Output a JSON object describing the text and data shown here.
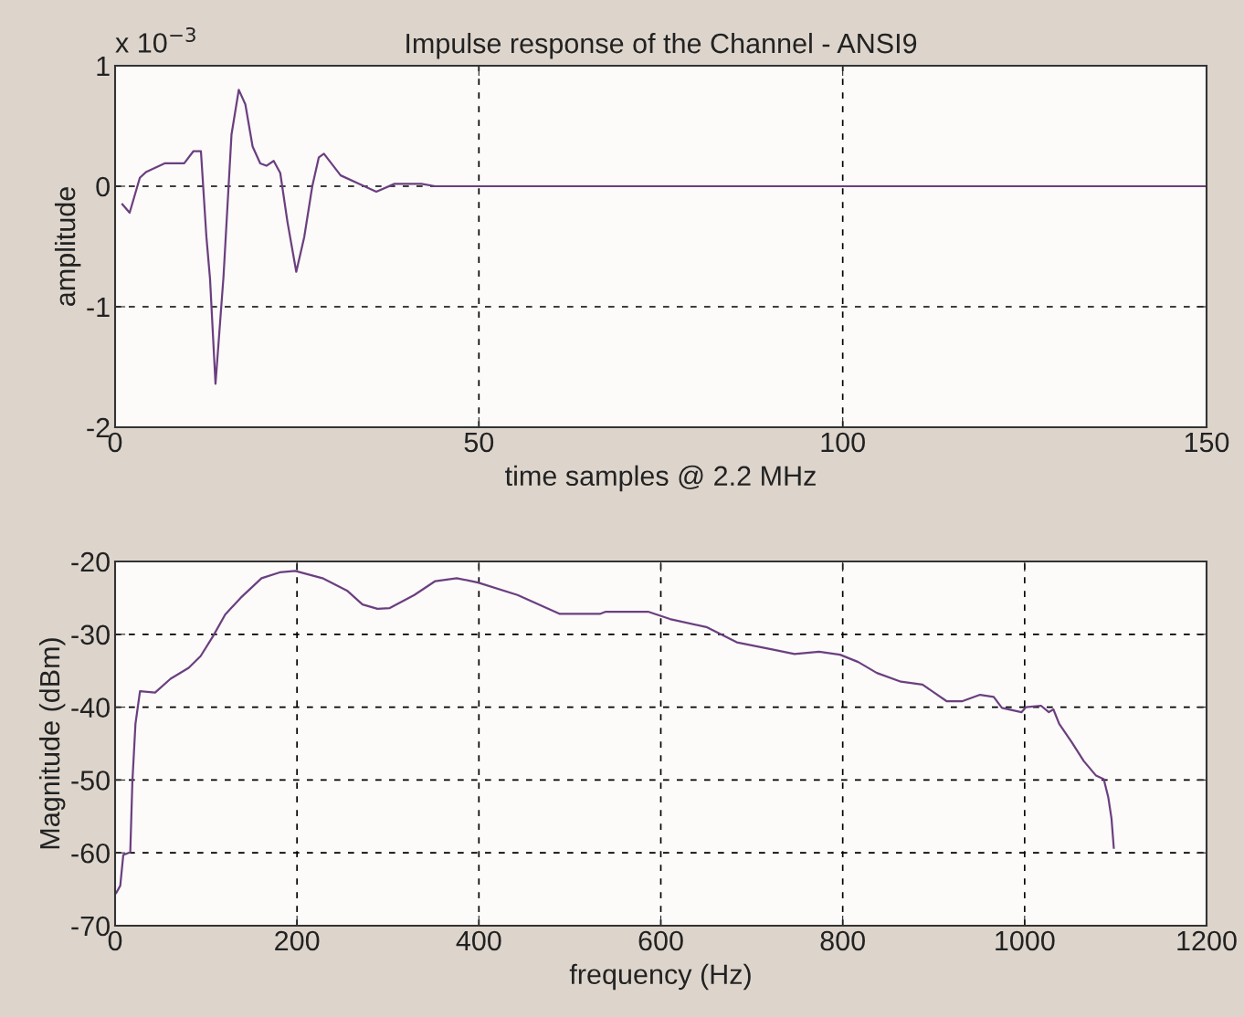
{
  "chart_data": [
    {
      "type": "line",
      "title": "Impulse response of the Channel - ANSI9",
      "xlabel": "time samples @ 2.2 MHz",
      "ylabel": "amplitude",
      "annotations": [
        "x 10$^{−3}$"
      ],
      "x": [
        1,
        2,
        3.4,
        4.3,
        6.8,
        9.5,
        10.75,
        11.8,
        12.55,
        13.05,
        13.8,
        14.9,
        16,
        17,
        17.9,
        18.9,
        19.95,
        20.8,
        21.8,
        22.7,
        23.7,
        24.9,
        26,
        27.1,
        28,
        28.7,
        31,
        33.5,
        35.9,
        38.4,
        42.1,
        44,
        150
      ],
      "series": [
        {
          "color": "#6b3f7f",
          "values": [
            -0.15,
            -0.22,
            0.07,
            0.12,
            0.19,
            0.19,
            0.29,
            0.29,
            -0.42,
            -0.77,
            -1.64,
            -0.75,
            0.43,
            0.8,
            0.68,
            0.33,
            0.19,
            0.17,
            0.21,
            0.11,
            -0.3,
            -0.71,
            -0.42,
            0.0,
            0.24,
            0.27,
            0.09,
            0.02,
            -0.045,
            0.02,
            0.02,
            0,
            0
          ]
        }
      ],
      "xlim": [
        0,
        150
      ],
      "ylim": [
        -2,
        1
      ],
      "xticks": [
        0,
        50,
        100,
        150
      ],
      "yticks": [
        -2,
        -1,
        0,
        1
      ],
      "grid": true,
      "line_style": "solid",
      "marker": "none"
    },
    {
      "type": "line",
      "xlabel": "frequency (Hz)",
      "ylabel": "Magnitude (dBm)",
      "x": [
        1.3,
        5.7,
        9,
        16.7,
        19,
        22.4,
        27.4,
        44,
        61,
        81,
        94,
        108,
        121,
        138,
        161,
        181,
        198,
        228,
        255,
        272,
        288.5,
        302,
        329,
        352,
        375.6,
        392,
        399,
        442.5,
        489,
        533,
        539.5,
        586,
        610,
        650,
        683.5,
        723.7,
        747,
        774,
        797,
        817,
        837.5,
        864,
        887.7,
        914.5,
        931,
        951,
        966,
        975,
        996.5,
        1001.5,
        1018,
        1026.6,
        1031.6,
        1038,
        1051.7,
        1065,
        1078.5,
        1087,
        1092,
        1095.5,
        1098
      ],
      "series": [
        {
          "color": "#6b3f7f",
          "values": [
            -65.5,
            -64.5,
            -60.3,
            -59.9,
            -50.3,
            -42.3,
            -37.8,
            -38,
            -36.1,
            -34.6,
            -33,
            -30.2,
            -27.3,
            -25,
            -22.3,
            -21.5,
            -21.3,
            -22.3,
            -24,
            -25.9,
            -26.5,
            -26.4,
            -24.6,
            -22.7,
            -22.3,
            -22.7,
            -22.9,
            -24.6,
            -27.2,
            -27.2,
            -26.9,
            -26.9,
            -27.9,
            -29.0,
            -31.1,
            -32.1,
            -32.7,
            -32.4,
            -32.8,
            -33.8,
            -35.3,
            -36.5,
            -36.9,
            -39.2,
            -39.2,
            -38.3,
            -38.6,
            -40.1,
            -40.7,
            -40,
            -39.8,
            -40.7,
            -40.3,
            -42.3,
            -44.8,
            -47.4,
            -49.4,
            -49.9,
            -52.4,
            -55.3,
            -59.3
          ]
        }
      ],
      "xlim": [
        0,
        1200
      ],
      "ylim": [
        -70,
        -20
      ],
      "xticks": [
        0,
        200,
        400,
        600,
        800,
        1000,
        1200
      ],
      "yticks": [
        -70,
        -60,
        -50,
        -40,
        -30,
        -20
      ],
      "grid": true,
      "line_style": "solid",
      "marker": "none"
    }
  ]
}
